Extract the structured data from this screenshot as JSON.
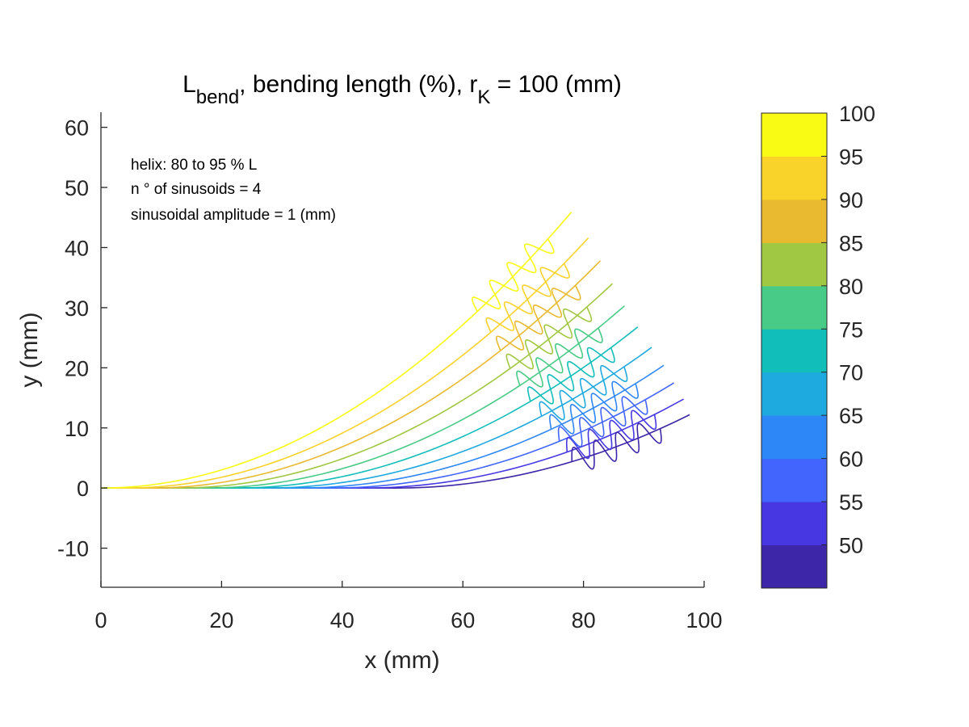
{
  "chart_data": {
    "type": "line",
    "title": {
      "main": "L",
      "main_sub": "bend",
      "middle": ", bending length (%), r",
      "r_sub": "K",
      "end": " = 100 (mm)"
    },
    "xlabel": "x (mm)",
    "ylabel": "y (mm)",
    "xlim": [
      0,
      100
    ],
    "ylim": [
      -16.5,
      62.5
    ],
    "xticks": [
      0,
      20,
      40,
      60,
      80,
      100
    ],
    "xtick_labels": [
      "0",
      "20",
      "40",
      "60",
      "80",
      "100"
    ],
    "yticks": [
      -10,
      0,
      10,
      20,
      30,
      40,
      50,
      60
    ],
    "ytick_labels": [
      "-10",
      "0",
      "10",
      "20",
      "30",
      "40",
      "50",
      "60"
    ],
    "grid": false,
    "annotations": [
      "helix: 80 to 95 % L",
      "n ° of sinusoids = 4",
      "sinusoidal amplitude = 1 (mm)"
    ],
    "helix": {
      "start_fraction": 0.8,
      "end_fraction": 0.95,
      "sinusoids": 4,
      "amplitude": 1
    },
    "series": [
      {
        "bend_percent": 50,
        "color": "#3e26a8",
        "x_end": 97.6,
        "y_end": 12.2
      },
      {
        "bend_percent": 55,
        "color": "#4637e3",
        "x_end": 96.6,
        "y_end": 14.8
      },
      {
        "bend_percent": 60,
        "color": "#4265fd",
        "x_end": 95.0,
        "y_end": 17.5
      },
      {
        "bend_percent": 65,
        "color": "#2e87f7",
        "x_end": 93.3,
        "y_end": 20.4
      },
      {
        "bend_percent": 70,
        "color": "#1ea9df",
        "x_end": 91.3,
        "y_end": 23.4
      },
      {
        "bend_percent": 75,
        "color": "#12beb9",
        "x_end": 89.0,
        "y_end": 26.8
      },
      {
        "bend_percent": 80,
        "color": "#48cb86",
        "x_end": 86.8,
        "y_end": 30.3
      },
      {
        "bend_percent": 85,
        "color": "#a1c842",
        "x_end": 84.8,
        "y_end": 34.0
      },
      {
        "bend_percent": 90,
        "color": "#e9ba30",
        "x_end": 82.8,
        "y_end": 37.8
      },
      {
        "bend_percent": 95,
        "color": "#fad32a",
        "x_end": 80.8,
        "y_end": 41.6
      },
      {
        "bend_percent": 100,
        "color": "#f9fb15",
        "x_end": 78.0,
        "y_end": 45.9
      }
    ],
    "colorbar": {
      "ticks": [
        50,
        55,
        60,
        65,
        70,
        75,
        80,
        85,
        90,
        95,
        100
      ],
      "tick_labels": [
        "50",
        "55",
        "60",
        "65",
        "70",
        "75",
        "80",
        "85",
        "90",
        "95",
        "100"
      ],
      "range": [
        45,
        100
      ],
      "bands": [
        {
          "from": 45,
          "to": 50,
          "color": "#3e26a8"
        },
        {
          "from": 50,
          "to": 55,
          "color": "#4637e3"
        },
        {
          "from": 55,
          "to": 60,
          "color": "#4265fd"
        },
        {
          "from": 60,
          "to": 65,
          "color": "#2e87f7"
        },
        {
          "from": 65,
          "to": 70,
          "color": "#1ea9df"
        },
        {
          "from": 70,
          "to": 75,
          "color": "#12beb9"
        },
        {
          "from": 75,
          "to": 80,
          "color": "#48cb86"
        },
        {
          "from": 80,
          "to": 85,
          "color": "#a1c842"
        },
        {
          "from": 85,
          "to": 90,
          "color": "#e9ba30"
        },
        {
          "from": 90,
          "to": 95,
          "color": "#fad32a"
        },
        {
          "from": 95,
          "to": 100,
          "color": "#f9fb15"
        }
      ]
    }
  }
}
